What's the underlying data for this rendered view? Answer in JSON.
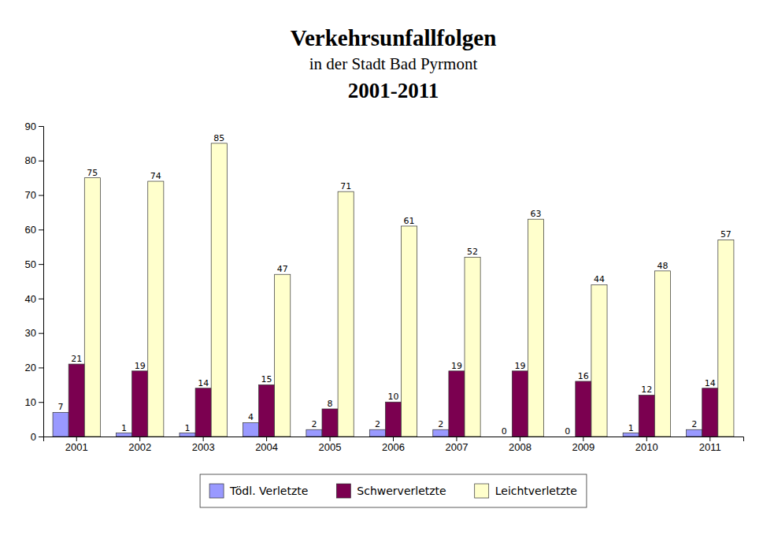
{
  "chart_data": {
    "type": "bar",
    "title": [
      "Verkehrsunfallfolgen",
      "in der Stadt Bad Pyrmont",
      "2001-2011"
    ],
    "categories": [
      "2001",
      "2002",
      "2003",
      "2004",
      "2005",
      "2006",
      "2007",
      "2008",
      "2009",
      "2010",
      "2011"
    ],
    "series": [
      {
        "name": "Tödl. Verletzte",
        "color": "#9999FF",
        "values": [
          7,
          1,
          1,
          4,
          2,
          2,
          2,
          0,
          0,
          1,
          2
        ]
      },
      {
        "name": "Schwerverletzte",
        "color": "#7B0050",
        "values": [
          21,
          19,
          14,
          15,
          8,
          10,
          19,
          19,
          16,
          12,
          14
        ]
      },
      {
        "name": "Leichtverletzte",
        "color": "#FFFFCC",
        "values": [
          75,
          74,
          85,
          47,
          71,
          61,
          52,
          63,
          44,
          48,
          57
        ]
      }
    ],
    "ylim": [
      0,
      90
    ],
    "yticks": [
      0,
      10,
      20,
      30,
      40,
      50,
      60,
      70,
      80,
      90
    ],
    "grid": false,
    "legend": "bottom",
    "data_labels": true
  }
}
